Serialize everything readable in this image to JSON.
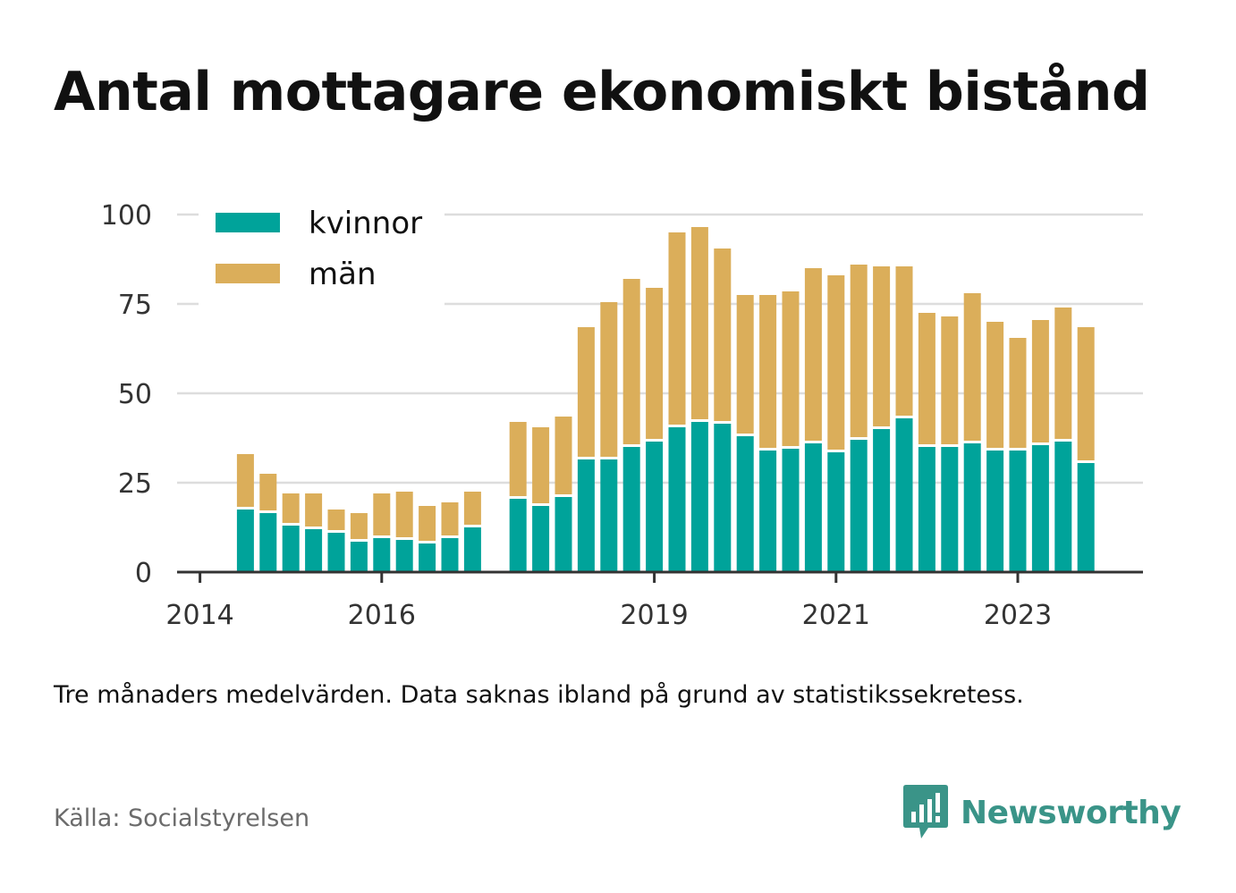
{
  "title": "Antal mottagare ekonomiskt bistånd",
  "note": "Tre månaders medelvärden. Data saknas ibland på grund av statistikssekretess.",
  "source": "Källa: Socialstyrelsen",
  "brand": {
    "name": "Newsworthy",
    "logo_icon": "bar-chart-speech-bubble-icon",
    "color": "#3a9488"
  },
  "colors": {
    "kvinnor": "#00a39a",
    "man": "#dbae5a",
    "grid": "#dddddd",
    "axis": "#333333"
  },
  "chart_data": {
    "type": "bar",
    "stacked": true,
    "title": "Antal mottagare ekonomiskt bistånd",
    "xlabel": "",
    "ylabel": "",
    "ylim": [
      0,
      100
    ],
    "yticks": [
      0,
      25,
      50,
      75,
      100
    ],
    "xticks": [
      "2014",
      "2016",
      "2019",
      "2021",
      "2023"
    ],
    "grid": true,
    "legend": "top-left",
    "x": [
      "2014-Q2",
      "2014-Q3",
      "2014-Q4",
      "2015-Q1",
      "2015-Q2",
      "2015-Q3",
      "2015-Q4",
      "2016-Q1",
      "2016-Q2",
      "2016-Q3",
      "2016-Q4",
      "2017-Q1",
      "2017-Q2",
      "2017-Q3",
      "2017-Q4",
      "2018-Q1",
      "2018-Q2",
      "2018-Q3",
      "2018-Q4",
      "2019-Q1",
      "2019-Q2",
      "2019-Q3",
      "2019-Q4",
      "2020-Q1",
      "2020-Q2",
      "2020-Q3",
      "2020-Q4",
      "2021-Q1",
      "2021-Q2",
      "2021-Q3",
      "2021-Q4",
      "2022-Q1",
      "2022-Q2",
      "2022-Q3",
      "2022-Q4",
      "2023-Q1",
      "2023-Q2",
      "2023-Q3",
      "2023-Q4",
      "2024-Q1"
    ],
    "series": [
      {
        "name": "kvinnor",
        "values": [
          null,
          17.5,
          16.5,
          13,
          12,
          11,
          8.5,
          9.5,
          9,
          8,
          9.5,
          12.5,
          null,
          20.5,
          18.5,
          21,
          31.5,
          31.5,
          35,
          36.5,
          40.5,
          42,
          41.5,
          38,
          34,
          34.5,
          36,
          33.5,
          37,
          40,
          43,
          35,
          35,
          36,
          34,
          34,
          35.5,
          36.5,
          30.5,
          null
        ]
      },
      {
        "name": "män",
        "values": [
          null,
          15.5,
          11,
          9,
          10,
          6.5,
          8,
          12.5,
          13.5,
          10.5,
          10,
          10,
          null,
          21.5,
          22,
          22.5,
          37,
          44,
          47,
          43,
          54.5,
          54.5,
          49,
          39.5,
          43.5,
          44,
          49,
          49.5,
          49,
          45.5,
          42.5,
          37.5,
          36.5,
          42,
          36,
          31.5,
          35,
          37.5,
          38,
          null
        ]
      }
    ]
  }
}
